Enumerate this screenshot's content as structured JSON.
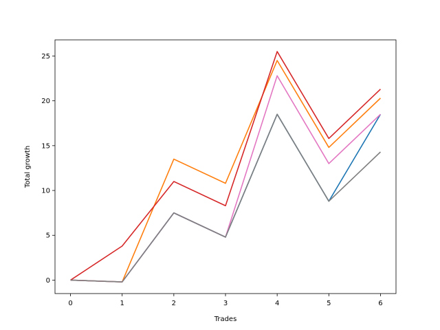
{
  "chart_data": {
    "type": "line",
    "title": "",
    "xlabel": "Trades",
    "ylabel": "Total growth",
    "xlim": [
      -0.3,
      6.3
    ],
    "ylim": [
      -1.5,
      26.8
    ],
    "x": [
      0,
      1,
      2,
      3,
      4,
      5,
      6
    ],
    "xticks": [
      0,
      1,
      2,
      3,
      4,
      5,
      6
    ],
    "yticks": [
      0,
      5,
      10,
      15,
      20,
      25
    ],
    "grid": false,
    "legend": "none",
    "series": [
      {
        "color": "#1f77b4",
        "values": [
          0,
          -0.2,
          7.5,
          4.8,
          18.5,
          8.8,
          18.5
        ]
      },
      {
        "color": "#ff7f0e",
        "values": [
          0,
          -0.2,
          13.5,
          10.8,
          24.5,
          14.8,
          20.3
        ]
      },
      {
        "color": "#e377c2",
        "values": [
          0,
          -0.2,
          7.5,
          4.8,
          22.8,
          13.0,
          18.5
        ]
      },
      {
        "color": "#d62728",
        "values": [
          0,
          3.8,
          11.0,
          8.3,
          25.5,
          15.8,
          21.3
        ]
      },
      {
        "color": "#7f7f7f",
        "values": [
          0,
          -0.2,
          7.5,
          4.8,
          18.5,
          8.8,
          14.3
        ]
      }
    ]
  }
}
